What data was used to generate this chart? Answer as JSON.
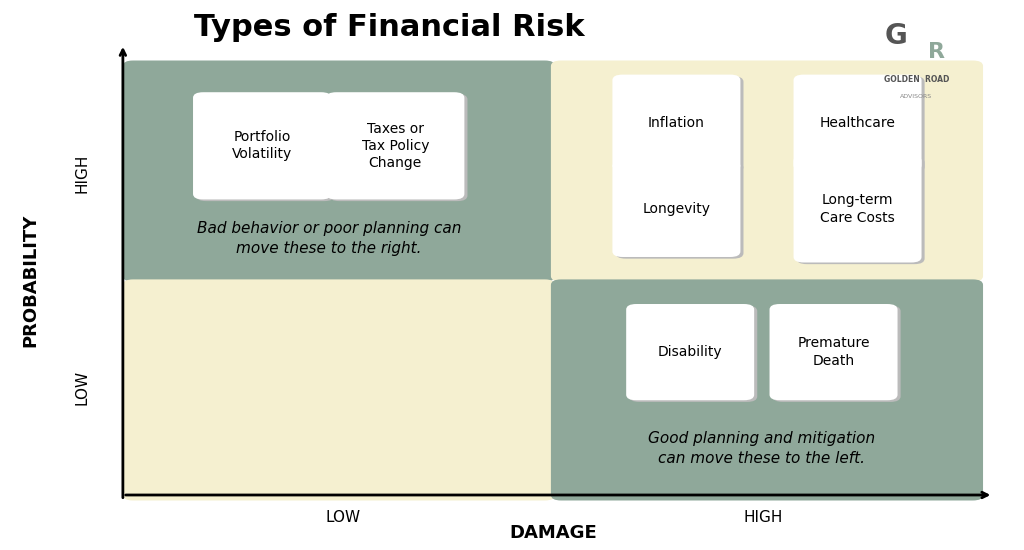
{
  "title": "Types of Financial Risk",
  "background_color": "#ffffff",
  "quadrant_colors": {
    "top_left": "#8fa89a",
    "top_right": "#f5f0d0",
    "bottom_left": "#f5f0d0",
    "bottom_right": "#8fa89a"
  },
  "card_color": "#ffffff",
  "axis_label_x": "DAMAGE",
  "axis_label_y": "PROBABILITY",
  "x_tick_low": "LOW",
  "x_tick_high": "HIGH",
  "y_tick_low": "LOW",
  "y_tick_high": "HIGH",
  "top_left_cards": [
    "Portfolio\nVolatility",
    "Taxes or\nTax Policy\nChange"
  ],
  "top_right_cards": [
    "Inflation",
    "Healthcare",
    "Longevity",
    "Long-term\nCare Costs"
  ],
  "bottom_right_cards": [
    "Disability",
    "Premature\nDeath"
  ],
  "top_left_note": "Bad behavior or poor planning can\nmove these to the right.",
  "bottom_right_note": "Good planning and mitigation\ncan move these to the left.",
  "title_fontsize": 22,
  "axis_label_fontsize": 13,
  "tick_label_fontsize": 11,
  "card_fontsize": 10,
  "note_fontsize": 11
}
